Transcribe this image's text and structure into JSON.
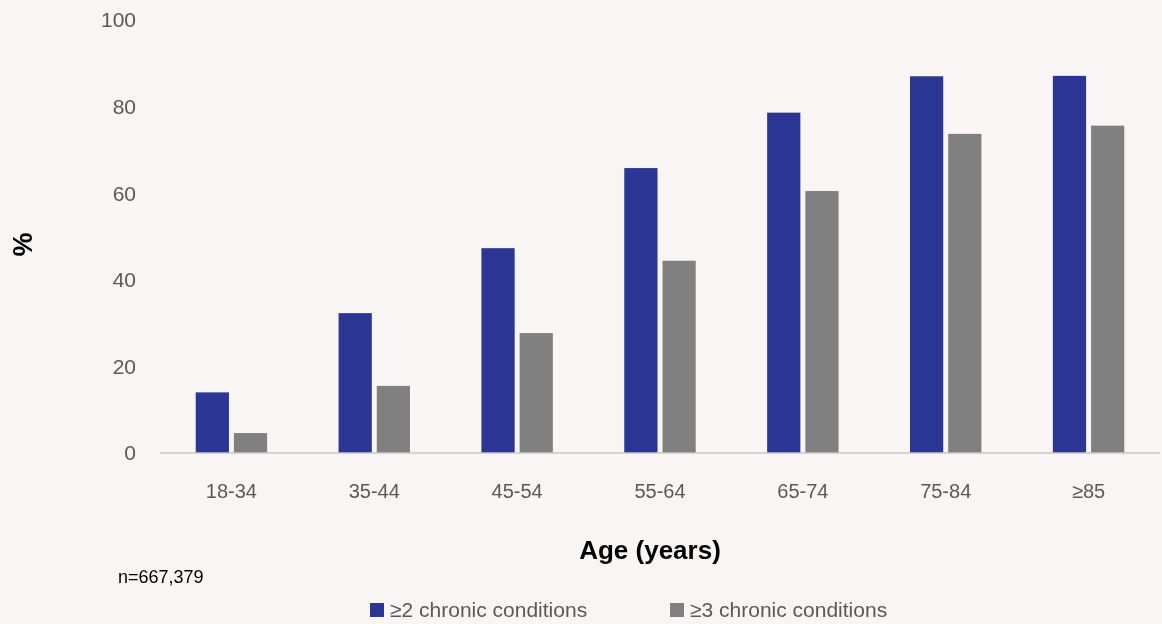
{
  "chart_data": {
    "type": "bar",
    "xlabel": "Age (years)",
    "ylabel": "%",
    "categories": [
      "18-34",
      "35-44",
      "45-54",
      "55-64",
      "65-74",
      "75-84",
      "≥85"
    ],
    "series": [
      {
        "name": "≥2 chronic conditions",
        "color": "#2b3594",
        "values": [
          14.0,
          32.3,
          47.3,
          65.8,
          78.6,
          87.0,
          87.1
        ]
      },
      {
        "name": "≥3 chronic conditions",
        "color": "#808080",
        "values": [
          4.6,
          15.5,
          27.7,
          44.4,
          60.5,
          73.7,
          75.6
        ]
      }
    ],
    "ylim": [
      0,
      100
    ],
    "yticks": [
      0,
      20,
      40,
      60,
      80,
      100
    ],
    "grid": false,
    "legend": "bottom",
    "annotations": [
      "n=667,379"
    ]
  }
}
